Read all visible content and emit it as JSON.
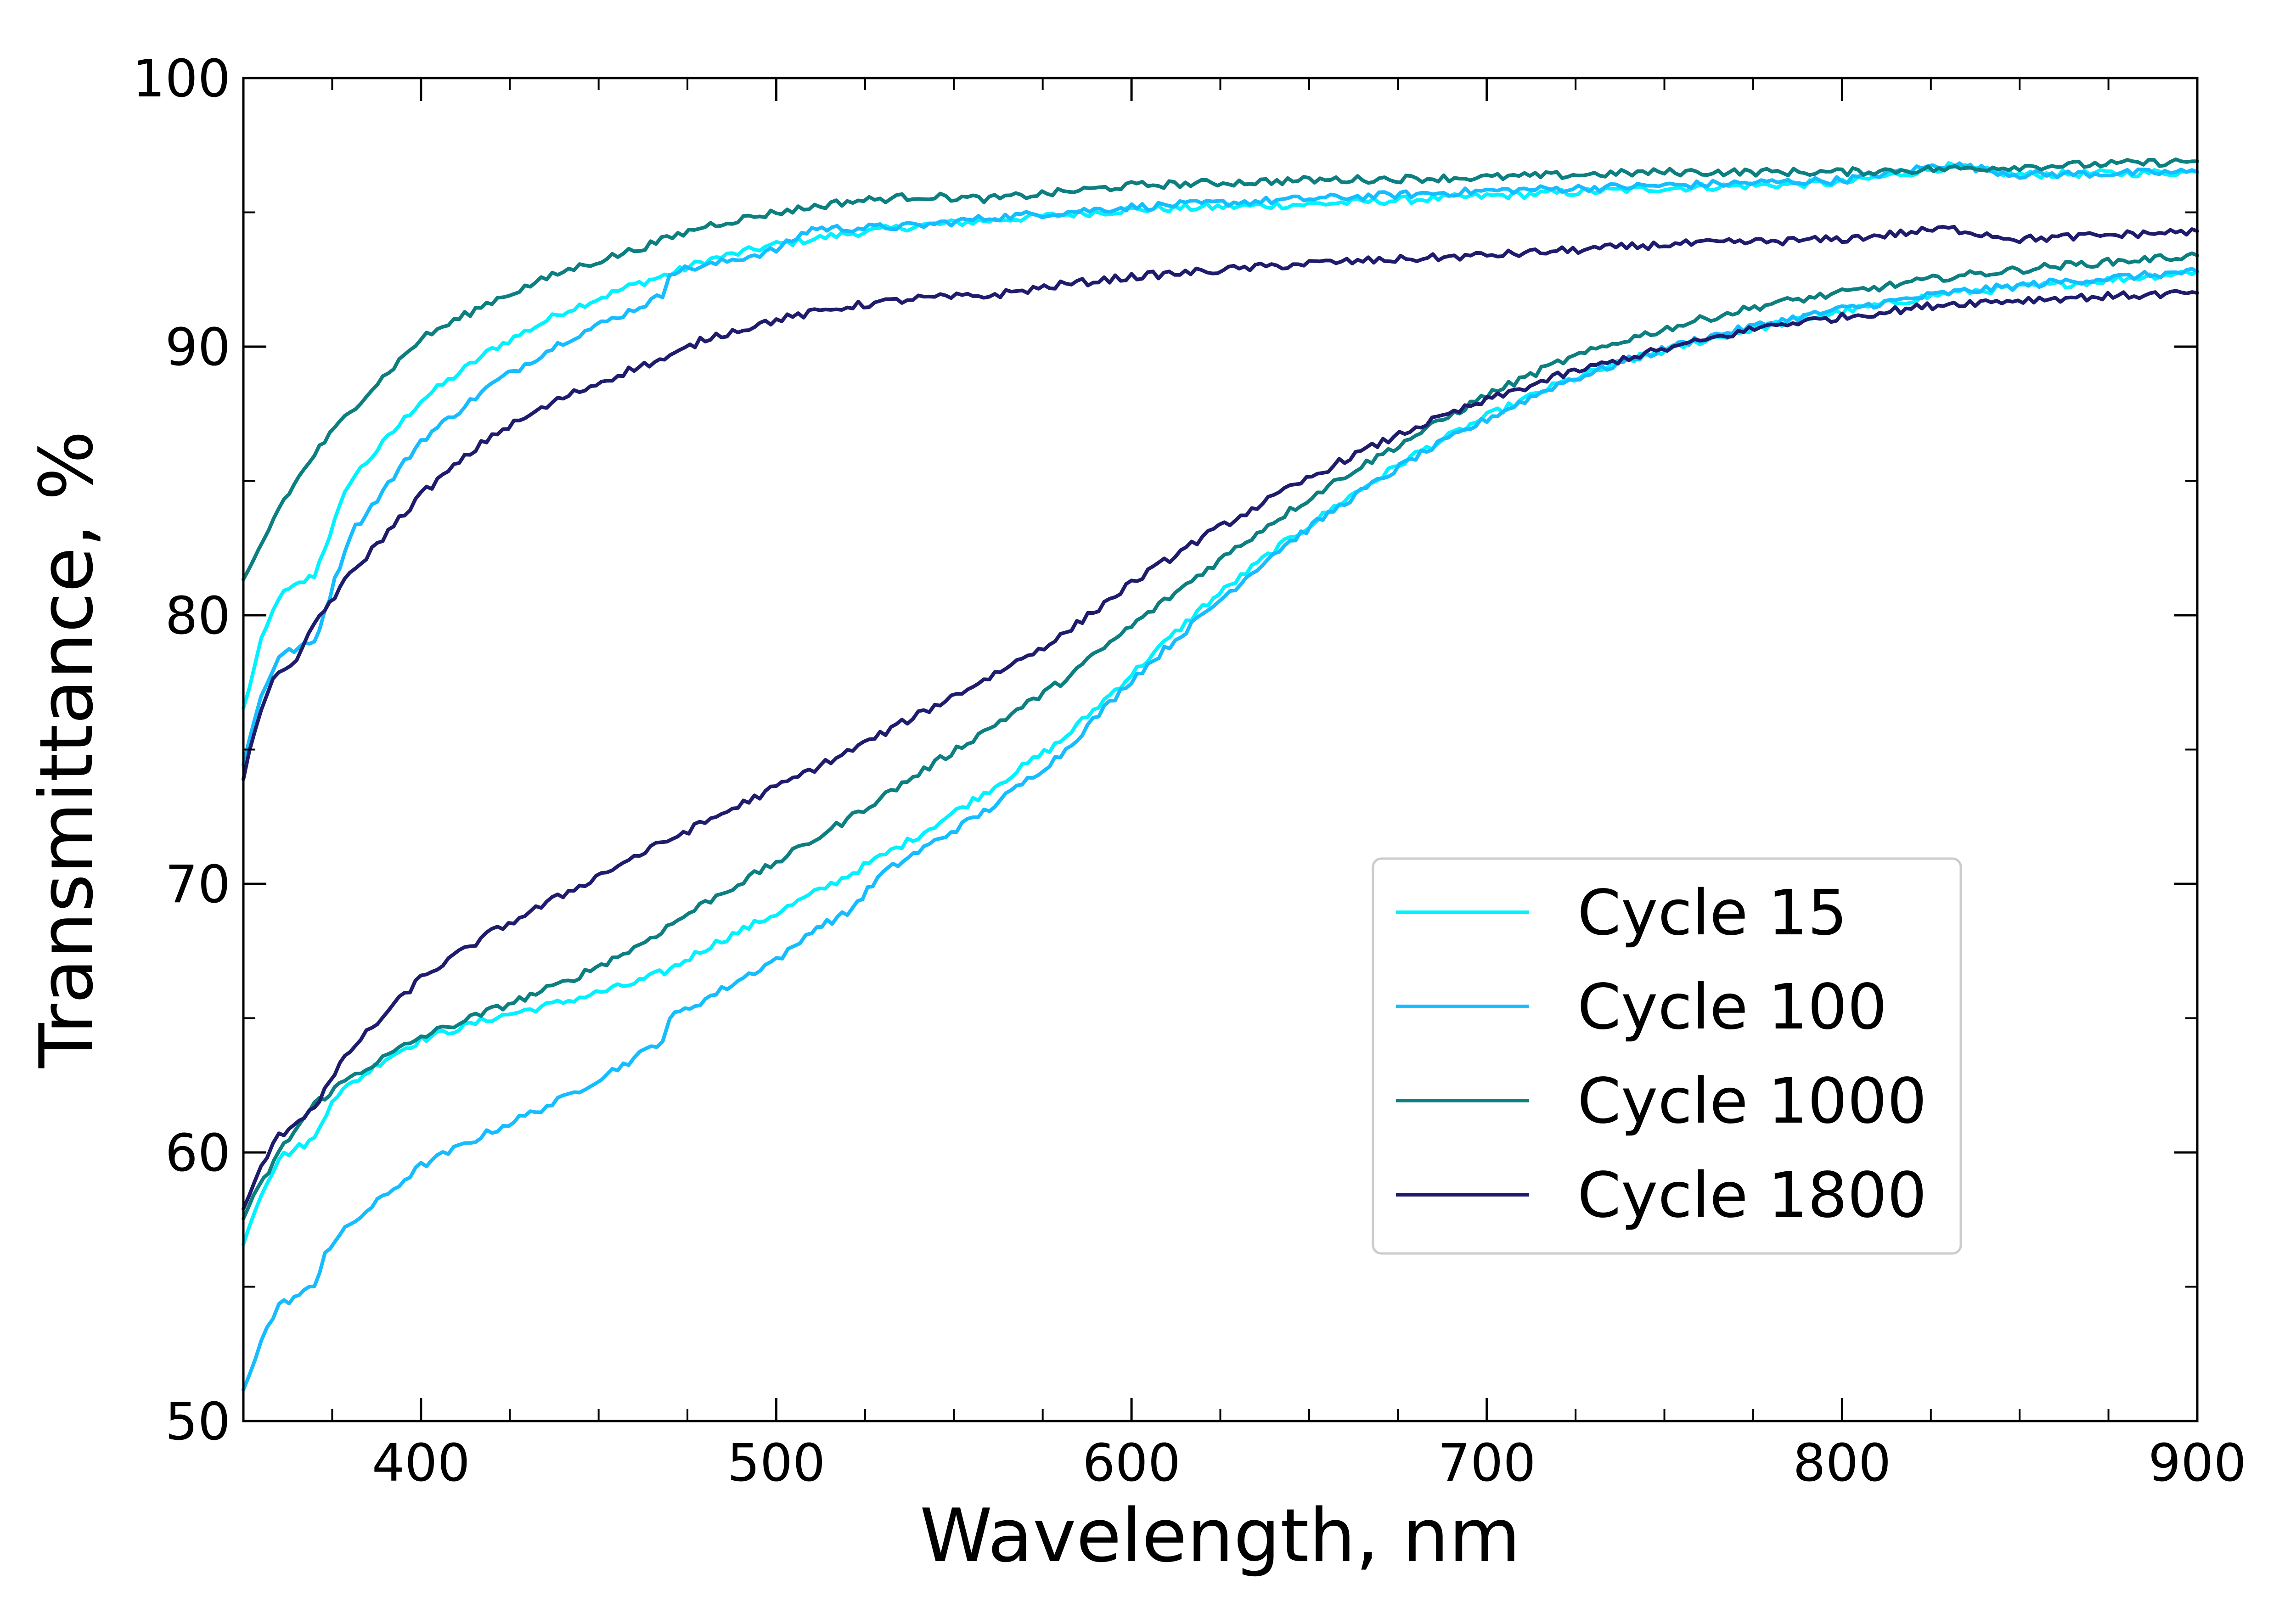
{
  "chart_data": {
    "type": "line",
    "xlabel": "Wavelength, nm",
    "ylabel": "Transmittance, %",
    "xlim": [
      350,
      900
    ],
    "ylim": [
      50,
      100
    ],
    "xticks": [
      400,
      500,
      600,
      700,
      800,
      900
    ],
    "xtick_labels": [
      "400",
      "500",
      "600",
      "700",
      "800",
      "900"
    ],
    "yticks": [
      50,
      60,
      70,
      80,
      90,
      100
    ],
    "ytick_labels": [
      "50",
      "60",
      "70",
      "80",
      "90",
      "100"
    ],
    "grid": false,
    "legend_position": "lower-right",
    "series": [
      {
        "name": "Cycle 15",
        "color": "#00f2ff",
        "upper": [
          [
            350,
            76.5
          ],
          [
            355,
            79
          ],
          [
            360,
            80.7
          ],
          [
            370,
            81.5
          ],
          [
            380,
            85
          ],
          [
            400,
            88
          ],
          [
            420,
            89.9
          ],
          [
            440,
            91.3
          ],
          [
            460,
            92.3
          ],
          [
            470,
            92.7
          ],
          [
            480,
            93.2
          ],
          [
            500,
            93.8
          ],
          [
            520,
            94.2
          ],
          [
            540,
            94.5
          ],
          [
            560,
            94.7
          ],
          [
            600,
            95.1
          ],
          [
            650,
            95.3
          ],
          [
            700,
            95.6
          ],
          [
            750,
            95.9
          ],
          [
            800,
            96.1
          ],
          [
            830,
            96.7
          ],
          [
            850,
            96.4
          ],
          [
            900,
            96.5
          ]
        ],
        "lower": [
          [
            350,
            56.7
          ],
          [
            355,
            58.5
          ],
          [
            360,
            59.8
          ],
          [
            370,
            60.5
          ],
          [
            375,
            62
          ],
          [
            390,
            63.5
          ],
          [
            400,
            64.2
          ],
          [
            420,
            65
          ],
          [
            440,
            65.6
          ],
          [
            460,
            66.3
          ],
          [
            470,
            66.8
          ],
          [
            480,
            67.6
          ],
          [
            500,
            68.9
          ],
          [
            520,
            70.3
          ],
          [
            540,
            71.8
          ],
          [
            560,
            73.5
          ],
          [
            580,
            75.3
          ],
          [
            600,
            77.8
          ],
          [
            620,
            80.3
          ],
          [
            640,
            82.4
          ],
          [
            660,
            84.3
          ],
          [
            680,
            86
          ],
          [
            700,
            87.4
          ],
          [
            720,
            88.6
          ],
          [
            740,
            89.5
          ],
          [
            760,
            90.2
          ],
          [
            780,
            90.8
          ],
          [
            800,
            91.3
          ],
          [
            830,
            92
          ],
          [
            860,
            92.3
          ],
          [
            900,
            92.8
          ]
        ]
      },
      {
        "name": "Cycle 100",
        "color": "#15bdff",
        "upper": [
          [
            350,
            74.5
          ],
          [
            355,
            77
          ],
          [
            360,
            78.5
          ],
          [
            370,
            79
          ],
          [
            380,
            83
          ],
          [
            400,
            86.5
          ],
          [
            420,
            88.6
          ],
          [
            440,
            90.2
          ],
          [
            460,
            91.4
          ],
          [
            468,
            91.9
          ],
          [
            470,
            92.8
          ],
          [
            480,
            93
          ],
          [
            500,
            93.6
          ],
          [
            510,
            94.4
          ],
          [
            520,
            94.4
          ],
          [
            540,
            94.5
          ],
          [
            560,
            94.8
          ],
          [
            600,
            95.2
          ],
          [
            650,
            95.5
          ],
          [
            700,
            95.8
          ],
          [
            750,
            96
          ],
          [
            800,
            96.2
          ],
          [
            830,
            96.8
          ],
          [
            850,
            96.4
          ],
          [
            900,
            96.5
          ]
        ],
        "lower": [
          [
            350,
            51.2
          ],
          [
            355,
            53
          ],
          [
            360,
            54.3
          ],
          [
            370,
            55
          ],
          [
            373,
            56.3
          ],
          [
            380,
            57.3
          ],
          [
            400,
            59.5
          ],
          [
            420,
            60.8
          ],
          [
            440,
            62
          ],
          [
            460,
            63.5
          ],
          [
            468,
            64.2
          ],
          [
            470,
            65
          ],
          [
            480,
            65.7
          ],
          [
            500,
            67.2
          ],
          [
            505,
            67.6
          ],
          [
            510,
            68.3
          ],
          [
            520,
            68.9
          ],
          [
            530,
            70.4
          ],
          [
            540,
            71.2
          ],
          [
            560,
            72.8
          ],
          [
            580,
            74.8
          ],
          [
            600,
            77.6
          ],
          [
            620,
            80
          ],
          [
            640,
            82.3
          ],
          [
            660,
            84.2
          ],
          [
            680,
            85.9
          ],
          [
            700,
            87.3
          ],
          [
            720,
            88.6
          ],
          [
            740,
            89.5
          ],
          [
            760,
            90.3
          ],
          [
            780,
            90.9
          ],
          [
            800,
            91.4
          ],
          [
            830,
            92
          ],
          [
            860,
            92.4
          ],
          [
            900,
            92.8
          ]
        ]
      },
      {
        "name": "Cycle 1000",
        "color": "#0d7f80",
        "upper": [
          [
            350,
            81.2
          ],
          [
            360,
            84
          ],
          [
            370,
            86
          ],
          [
            380,
            87.6
          ],
          [
            400,
            90.3
          ],
          [
            420,
            91.7
          ],
          [
            440,
            92.8
          ],
          [
            460,
            93.6
          ],
          [
            480,
            94.5
          ],
          [
            500,
            95
          ],
          [
            520,
            95.4
          ],
          [
            540,
            95.6
          ],
          [
            560,
            95.5
          ],
          [
            600,
            96
          ],
          [
            650,
            96.2
          ],
          [
            700,
            96.3
          ],
          [
            750,
            96.5
          ],
          [
            800,
            96.5
          ],
          [
            850,
            96.7
          ],
          [
            900,
            96.9
          ]
        ],
        "lower": [
          [
            350,
            57.6
          ],
          [
            360,
            60
          ],
          [
            370,
            61.8
          ],
          [
            380,
            62.8
          ],
          [
            400,
            64.3
          ],
          [
            420,
            65.3
          ],
          [
            440,
            66.3
          ],
          [
            460,
            67.6
          ],
          [
            480,
            69.3
          ],
          [
            500,
            70.8
          ],
          [
            520,
            72.4
          ],
          [
            540,
            74.1
          ],
          [
            560,
            75.8
          ],
          [
            580,
            77.5
          ],
          [
            600,
            79.6
          ],
          [
            620,
            81.6
          ],
          [
            640,
            83.5
          ],
          [
            660,
            85.2
          ],
          [
            680,
            86.7
          ],
          [
            700,
            88.2
          ],
          [
            720,
            89.4
          ],
          [
            740,
            90.3
          ],
          [
            760,
            91
          ],
          [
            780,
            91.6
          ],
          [
            800,
            92
          ],
          [
            830,
            92.6
          ],
          [
            860,
            93
          ],
          [
            900,
            93.4
          ]
        ]
      },
      {
        "name": "Cycle 1800",
        "color": "#1f1c6e",
        "upper": [
          [
            350,
            74
          ],
          [
            355,
            76.5
          ],
          [
            360,
            78
          ],
          [
            365,
            78.2
          ],
          [
            370,
            79.7
          ],
          [
            380,
            81.5
          ],
          [
            400,
            84.5
          ],
          [
            420,
            86.7
          ],
          [
            440,
            88.1
          ],
          [
            460,
            89.2
          ],
          [
            470,
            89.6
          ],
          [
            480,
            90.3
          ],
          [
            500,
            91
          ],
          [
            520,
            91.5
          ],
          [
            540,
            91.8
          ],
          [
            560,
            91.9
          ],
          [
            580,
            92.3
          ],
          [
            600,
            92.6
          ],
          [
            650,
            93.1
          ],
          [
            700,
            93.4
          ],
          [
            750,
            93.8
          ],
          [
            800,
            94
          ],
          [
            830,
            94.4
          ],
          [
            850,
            94
          ],
          [
            900,
            94.3
          ]
        ],
        "lower": [
          [
            350,
            57.8
          ],
          [
            355,
            59.5
          ],
          [
            360,
            60.6
          ],
          [
            370,
            61.7
          ],
          [
            380,
            63.8
          ],
          [
            400,
            66.5
          ],
          [
            420,
            68.2
          ],
          [
            440,
            69.6
          ],
          [
            460,
            71
          ],
          [
            480,
            72.3
          ],
          [
            500,
            73.6
          ],
          [
            520,
            74.9
          ],
          [
            540,
            76.3
          ],
          [
            560,
            77.7
          ],
          [
            580,
            79.2
          ],
          [
            600,
            81.2
          ],
          [
            620,
            82.9
          ],
          [
            640,
            84.4
          ],
          [
            660,
            85.8
          ],
          [
            680,
            87
          ],
          [
            700,
            88
          ],
          [
            720,
            88.9
          ],
          [
            740,
            89.6
          ],
          [
            760,
            90.2
          ],
          [
            780,
            90.8
          ],
          [
            800,
            91.1
          ],
          [
            830,
            91.6
          ],
          [
            860,
            91.8
          ],
          [
            900,
            92
          ]
        ]
      }
    ]
  }
}
